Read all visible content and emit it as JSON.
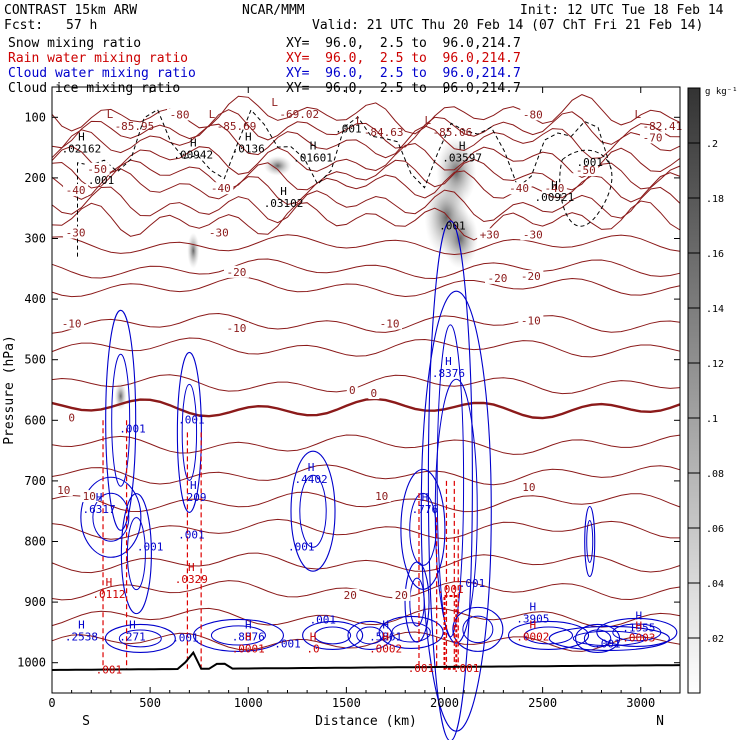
{
  "header": {
    "model": "CONTRAST 15km ARW",
    "center": "NCAR/MMM",
    "init": "Init: 12 UTC Tue 18 Feb 14",
    "fcst_label": "Fcst:",
    "fcst_value": "57 h",
    "valid": "Valid: 21 UTC Thu 20 Feb 14 (07 ChT Fri 21 Feb 14)"
  },
  "fields": [
    {
      "name": "Snow mixing ratio",
      "xy": "XY=  96.0,  2.5 to  96.0,214.7",
      "color": "#000000"
    },
    {
      "name": "Rain water mixing ratio",
      "xy": "XY=  96.0,  2.5 to  96.0,214.7",
      "color": "#cc0000"
    },
    {
      "name": "Cloud water mixing ratio",
      "xy": "XY=  96.0,  2.5 to  96.0,214.7",
      "color": "#0000cc"
    },
    {
      "name": "Cloud ice mixing ratio",
      "xy": "XY=  96.0,  2.5 to  96.0,214.7",
      "color": "#000000"
    }
  ],
  "colorbar": {
    "unit": "g kg⁻¹",
    "ticks": [
      ".2",
      ".18",
      ".16",
      ".14",
      ".12",
      ".1",
      ".08",
      ".06",
      ".04",
      ".02"
    ]
  },
  "chart_data": {
    "type": "cross-section",
    "xlabel": "Distance (km)",
    "ylabel": "Pressure (hPa)",
    "xlim": [
      0,
      3200
    ],
    "ylim": [
      1050,
      50
    ],
    "xticks": [
      "0",
      "500",
      "1000",
      "1500",
      "2000",
      "2500",
      "3000"
    ],
    "xtick_values": [
      0,
      500,
      1000,
      1500,
      2000,
      2500,
      3000
    ],
    "yticks": [
      "100",
      "200",
      "300",
      "400",
      "500",
      "600",
      "700",
      "800",
      "900",
      "1000"
    ],
    "ytick_values": [
      100,
      200,
      300,
      400,
      500,
      600,
      700,
      800,
      900,
      1000
    ],
    "left_end": "S",
    "right_end": "N",
    "temperature_labels": [
      {
        "text": "-80",
        "x": 650,
        "p": 100
      },
      {
        "text": "-80",
        "x": 2450,
        "p": 100
      },
      {
        "text": "-70",
        "x": 3060,
        "p": 138
      },
      {
        "text": "-50",
        "x": 230,
        "p": 190
      },
      {
        "text": "-50",
        "x": 2720,
        "p": 192
      },
      {
        "text": "-40",
        "x": 120,
        "p": 225
      },
      {
        "text": "-40",
        "x": 860,
        "p": 222
      },
      {
        "text": "-40",
        "x": 2380,
        "p": 222
      },
      {
        "text": "-40",
        "x": 2560,
        "p": 222
      },
      {
        "text": "-30",
        "x": 120,
        "p": 295
      },
      {
        "text": "-30",
        "x": 850,
        "p": 295
      },
      {
        "text": "+30",
        "x": 2230,
        "p": 298
      },
      {
        "text": "-30",
        "x": 2450,
        "p": 298
      },
      {
        "text": "-20",
        "x": 940,
        "p": 360
      },
      {
        "text": "-20",
        "x": 2270,
        "p": 370
      },
      {
        "text": "-20",
        "x": 2440,
        "p": 367
      },
      {
        "text": "-10",
        "x": 100,
        "p": 445
      },
      {
        "text": "-10",
        "x": 940,
        "p": 453
      },
      {
        "text": "-10",
        "x": 1720,
        "p": 445
      },
      {
        "text": "-10",
        "x": 2440,
        "p": 440
      },
      {
        "text": "0",
        "x": 100,
        "p": 600
      },
      {
        "text": "0",
        "x": 1530,
        "p": 555
      },
      {
        "text": "0",
        "x": 1640,
        "p": 560
      },
      {
        "text": "10",
        "x": 60,
        "p": 720
      },
      {
        "text": "10",
        "x": 190,
        "p": 730
      },
      {
        "text": "10",
        "x": 1680,
        "p": 730
      },
      {
        "text": "10",
        "x": 2430,
        "p": 715
      },
      {
        "text": "20",
        "x": 1520,
        "p": 893
      },
      {
        "text": "20",
        "x": 1780,
        "p": 893
      }
    ],
    "highs": [
      {
        "label": "H",
        "value": ".02162",
        "x": 150,
        "p": 155
      },
      {
        "label": "H",
        "value": ".00942",
        "x": 720,
        "p": 165
      },
      {
        "label": "H",
        "value": ".0136",
        "x": 1000,
        "p": 155
      },
      {
        "label": "H",
        "value": ".01601",
        "x": 1330,
        "p": 170
      },
      {
        "label": "H",
        "value": ".03102",
        "x": 1180,
        "p": 245
      },
      {
        "label": "H",
        "value": ".03597",
        "x": 2090,
        "p": 170
      },
      {
        "label": "H",
        "value": ".00921",
        "x": 2560,
        "p": 235
      },
      {
        "label": "H",
        "value": ".8376",
        "x": 2020,
        "p": 525
      },
      {
        "label": "H",
        "value": ".6317",
        "x": 240,
        "p": 750
      },
      {
        "label": "H",
        "value": ".209",
        "x": 720,
        "p": 730
      },
      {
        "label": "H",
        "value": ".4402",
        "x": 1320,
        "p": 700
      },
      {
        "label": "H",
        "value": ".776",
        "x": 1900,
        "p": 750
      },
      {
        "label": "H",
        "value": ".2538",
        "x": 150,
        "p": 960
      },
      {
        "label": "H",
        "value": ".271",
        "x": 410,
        "p": 960
      },
      {
        "label": "H",
        "value": ".8876",
        "x": 1000,
        "p": 960
      },
      {
        "label": "H",
        "value": ".5861",
        "x": 1700,
        "p": 960
      },
      {
        "label": "H",
        "value": ".3905",
        "x": 2450,
        "p": 930
      },
      {
        "label": "H",
        "value": ".1955",
        "x": 2990,
        "p": 945
      },
      {
        "label": "H",
        "value": ".0329",
        "x": 710,
        "p": 865
      },
      {
        "label": "H",
        "value": ".0001",
        "x": 1000,
        "p": 980
      },
      {
        "label": "H",
        "value": ".0",
        "x": 1330,
        "p": 980
      },
      {
        "label": "H",
        "value": ".0002",
        "x": 1700,
        "p": 980
      },
      {
        "label": "H",
        "value": ".0002",
        "x": 2450,
        "p": 960
      },
      {
        "label": "H",
        "value": ".0003",
        "x": 2990,
        "p": 962
      },
      {
        "label": "H",
        "value": ".0112",
        "x": 290,
        "p": 890
      }
    ],
    "lows": [
      {
        "label": "L",
        "value": "-85.95",
        "x": 380,
        "p": 108
      },
      {
        "label": "L",
        "value": "-85.69",
        "x": 900,
        "p": 108
      },
      {
        "label": "L",
        "value": "-69.02",
        "x": 1220,
        "p": 88
      },
      {
        "label": "L",
        "value": "-84.63",
        "x": 1650,
        "p": 118
      },
      {
        "label": "L",
        "value": "-85.06",
        "x": 2000,
        "p": 118
      },
      {
        "label": "L",
        "value": "-82.41",
        "x": 3070,
        "p": 108
      }
    ],
    "small_values": [
      {
        "value": ".001",
        "x": 1510,
        "p": 125,
        "color": "#000000"
      },
      {
        "value": ".001",
        "x": 2740,
        "p": 180,
        "color": "#000000"
      },
      {
        "value": ".001",
        "x": 250,
        "p": 210,
        "color": "#000000"
      },
      {
        "value": ".001",
        "x": 2040,
        "p": 285,
        "color": "#000000"
      },
      {
        "value": ".001",
        "x": 410,
        "p": 620,
        "color": "#0000cc"
      },
      {
        "value": ".001",
        "x": 710,
        "p": 605,
        "color": "#0000cc"
      },
      {
        "value": ".001",
        "x": 500,
        "p": 815,
        "color": "#0000cc"
      },
      {
        "value": ".001",
        "x": 710,
        "p": 795,
        "color": "#0000cc"
      },
      {
        "value": ".001",
        "x": 1270,
        "p": 815,
        "color": "#0000cc"
      },
      {
        "value": ".001",
        "x": 2140,
        "p": 875,
        "color": "#0000cc"
      },
      {
        "value": ".001",
        "x": 2030,
        "p": 885,
        "color": "#cc0000"
      },
      {
        "value": ".001",
        "x": 1380,
        "p": 935,
        "color": "#0000cc"
      },
      {
        "value": ".001",
        "x": 1200,
        "p": 975,
        "color": "#0000cc"
      },
      {
        "value": ".001",
        "x": 680,
        "p": 965,
        "color": "#0000cc"
      },
      {
        "value": ".001",
        "x": 1880,
        "p": 1015,
        "color": "#cc0000"
      },
      {
        "value": ".001",
        "x": 2110,
        "p": 1015,
        "color": "#cc0000"
      },
      {
        "value": ".001",
        "x": 2830,
        "p": 975,
        "color": "#0000cc"
      },
      {
        "value": ".001",
        "x": 290,
        "p": 1018,
        "color": "#cc0000"
      }
    ]
  }
}
